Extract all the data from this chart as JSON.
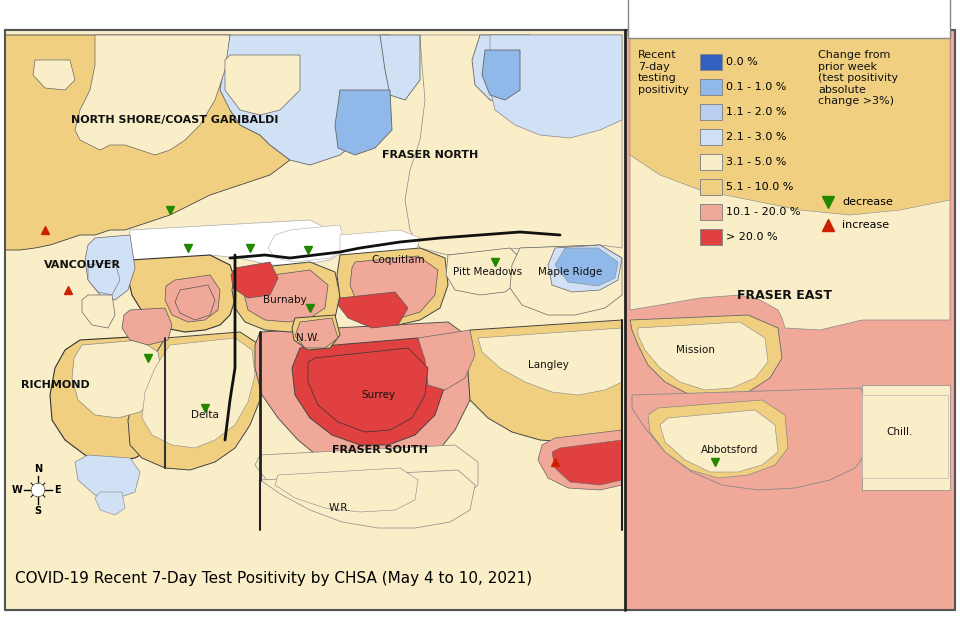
{
  "title": "COVID-19 Recent 7-Day Test Positivity by CHSA (May 4 to 10, 2021)",
  "colors": {
    "blue": "#3060c0",
    "blue1": "#90b8e8",
    "blue2": "#b8cff0",
    "blue3": "#d0e0f5",
    "yellow1": "#faeec8",
    "yellow2": "#f0d080",
    "pink": "#f0a898",
    "red": "#e04040"
  },
  "legend_labels": [
    "0.0 %",
    "0.1 - 1.0 %",
    "1.1 - 2.0 %",
    "2.1 - 3.0 %",
    "3.1 - 5.0 %",
    "5.1 - 10.0 %",
    "10.1 - 20.0 %",
    "> 20.0 %"
  ],
  "legend_colors": [
    "#3060c0",
    "#90b8e8",
    "#b8cff0",
    "#d0e0f5",
    "#faeec8",
    "#f0d080",
    "#f0a898",
    "#e04040"
  ],
  "bg": "#f5ede0",
  "water": "#ffffff"
}
